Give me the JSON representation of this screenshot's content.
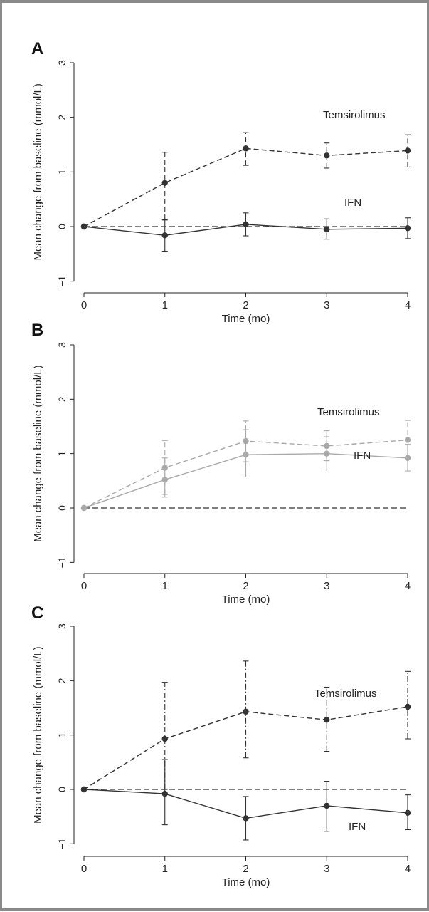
{
  "chart_data": [
    {
      "panel": "A",
      "type": "line",
      "xlabel": "Time (mo)",
      "ylabel": "Mean change from baseline (mmol/L)",
      "xlim": [
        0,
        4
      ],
      "ylim": [
        -1,
        3
      ],
      "xticks": [
        "0",
        "1",
        "2",
        "3",
        "4"
      ],
      "yticks": [
        "−1",
        "0",
        "1",
        "2",
        "3"
      ],
      "reference_line": 0,
      "series": [
        {
          "name": "Temsirolimus",
          "color": "#333333",
          "line": "dashed",
          "errorbar": "dashed",
          "x": [
            0,
            1,
            2,
            3,
            4
          ],
          "y": [
            0,
            0.8,
            1.43,
            1.3,
            1.39
          ],
          "lo": [
            0,
            0.13,
            1.12,
            1.07,
            1.09
          ],
          "hi": [
            0,
            1.36,
            1.72,
            1.53,
            1.68
          ]
        },
        {
          "name": "IFN",
          "color": "#333333",
          "line": "solid",
          "errorbar": "solid",
          "x": [
            0,
            1,
            2,
            3,
            4
          ],
          "y": [
            0,
            -0.16,
            0.04,
            -0.05,
            -0.03
          ],
          "lo": [
            0,
            -0.45,
            -0.17,
            -0.23,
            -0.22
          ],
          "hi": [
            0,
            0.12,
            0.25,
            0.14,
            0.16
          ]
        }
      ]
    },
    {
      "panel": "B",
      "type": "line",
      "xlabel": "Time (mo)",
      "ylabel": "Mean change from baseline (mmol/L)",
      "xlim": [
        0,
        4
      ],
      "ylim": [
        -1,
        3
      ],
      "xticks": [
        "0",
        "1",
        "2",
        "3",
        "4"
      ],
      "yticks": [
        "−1",
        "0",
        "1",
        "2",
        "3"
      ],
      "reference_line": 0,
      "series": [
        {
          "name": "Temsirolimus",
          "color": "#a9a9a9",
          "line": "dashed",
          "errorbar": "dashed",
          "x": [
            0,
            1,
            2,
            3,
            4
          ],
          "y": [
            0,
            0.74,
            1.23,
            1.14,
            1.25
          ],
          "lo": [
            0,
            0.25,
            0.85,
            0.87,
            0.91
          ],
          "hi": [
            0,
            1.24,
            1.6,
            1.42,
            1.61
          ]
        },
        {
          "name": "IFN",
          "color": "#a9a9a9",
          "line": "solid",
          "errorbar": "solid",
          "x": [
            0,
            1,
            2,
            3,
            4
          ],
          "y": [
            0,
            0.52,
            0.98,
            1.0,
            0.92
          ],
          "lo": [
            0,
            0.2,
            0.57,
            0.7,
            0.68
          ],
          "hi": [
            0,
            0.92,
            1.44,
            1.31,
            1.17
          ]
        }
      ]
    },
    {
      "panel": "C",
      "type": "line",
      "xlabel": "Time (mo)",
      "ylabel": "Mean change from baseline (mmol/L)",
      "xlim": [
        0,
        4
      ],
      "ylim": [
        -1,
        3
      ],
      "xticks": [
        "0",
        "1",
        "2",
        "3",
        "4"
      ],
      "yticks": [
        "−1",
        "0",
        "1",
        "2",
        "3"
      ],
      "reference_line": 0,
      "series": [
        {
          "name": "Temsirolimus",
          "color": "#333333",
          "line": "dashed",
          "errorbar": "dashdot",
          "x": [
            0,
            1,
            2,
            3,
            4
          ],
          "y": [
            0,
            0.93,
            1.43,
            1.28,
            1.52
          ],
          "lo": [
            0,
            0.0,
            0.58,
            0.7,
            0.93
          ],
          "hi": [
            0,
            1.97,
            2.36,
            1.88,
            2.17
          ]
        },
        {
          "name": "IFN",
          "color": "#333333",
          "line": "solid",
          "errorbar": "solid",
          "x": [
            0,
            1,
            2,
            3,
            4
          ],
          "y": [
            0,
            -0.08,
            -0.53,
            -0.3,
            -0.43
          ],
          "lo": [
            0,
            -0.65,
            -0.93,
            -0.77,
            -0.74
          ],
          "hi": [
            0,
            0.55,
            -0.13,
            0.15,
            -0.1
          ]
        }
      ]
    }
  ]
}
